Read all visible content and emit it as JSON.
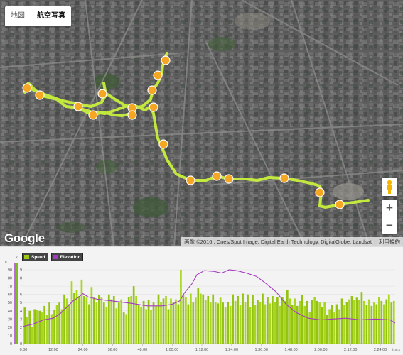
{
  "map": {
    "tabs": [
      {
        "label": "地図",
        "active": false
      },
      {
        "label": "航空写真",
        "active": true
      }
    ],
    "google_logo": "Google",
    "attribution": "画像 ©2016 , Cnes/Spot Image, Digital Earth Technology, DigitalGlobe, Landsat",
    "terms": "利用規約",
    "zoom_in": "+",
    "zoom_out": "−",
    "route_color": "#c8f03c",
    "marker_color": "#f5a623",
    "icons": [
      "pegman-icon",
      "runner-marker-icon"
    ]
  },
  "chart_data": {
    "type": "bar",
    "legend": [
      {
        "name": "Speed",
        "color": "#9cc817"
      },
      {
        "name": "Elevation",
        "color": "#a43bbf"
      }
    ],
    "unit_left": "m",
    "unit_left2": "k",
    "y_ticks_left": [
      "90",
      "80",
      "70",
      "60",
      "50",
      "40",
      "30",
      "20",
      "10",
      "0"
    ],
    "y_ticks_right": [
      "9",
      "8",
      "7",
      "6",
      "5",
      "4",
      "3",
      "2",
      "1",
      "0"
    ],
    "x_ticks": [
      "0:00",
      "12:00",
      "24:00",
      "36:00",
      "48:00",
      "1:00:00",
      "1:12:00",
      "1:24:00",
      "1:36:00",
      "1:48:00",
      "2:00:00",
      "2:12:00",
      "2:24:00"
    ],
    "x_unit": "h:m:s",
    "xlim_minutes": [
      0,
      150
    ],
    "ylim": [
      0,
      95
    ],
    "speed_values": [
      44,
      32,
      40,
      20,
      42,
      41,
      40,
      38,
      46,
      35,
      50,
      36,
      41,
      47,
      50,
      42,
      60,
      55,
      48,
      76,
      62,
      65,
      58,
      78,
      58,
      56,
      48,
      69,
      56,
      50,
      59,
      56,
      50,
      45,
      60,
      54,
      58,
      43,
      50,
      54,
      38,
      36,
      57,
      58,
      70,
      58,
      47,
      45,
      52,
      42,
      53,
      41,
      50,
      46,
      60,
      51,
      55,
      58,
      42,
      55,
      50,
      54,
      48,
      90,
      59,
      57,
      48,
      61,
      50,
      56,
      68,
      61,
      60,
      53,
      58,
      50,
      60,
      51,
      49,
      56,
      50,
      45,
      51,
      46,
      60,
      52,
      58,
      47,
      61,
      51,
      60,
      45,
      59,
      47,
      53,
      51,
      61,
      48,
      57,
      49,
      58,
      51,
      57,
      46,
      57,
      52,
      65,
      55,
      47,
      55,
      46,
      52,
      59,
      46,
      52,
      39,
      53,
      57,
      52,
      50,
      45,
      51,
      35,
      42,
      47,
      38,
      48,
      42,
      55,
      47,
      51,
      54,
      58,
      53,
      56,
      53,
      63,
      52,
      47,
      54,
      46,
      50,
      48,
      57,
      52,
      48,
      54,
      60,
      50,
      52
    ],
    "elevation_points": [
      [
        0,
        21
      ],
      [
        4,
        24
      ],
      [
        8,
        29
      ],
      [
        12,
        31
      ],
      [
        15,
        37
      ],
      [
        18,
        46
      ],
      [
        20,
        52
      ],
      [
        22,
        56
      ],
      [
        24,
        61
      ],
      [
        26,
        57
      ],
      [
        30,
        54
      ],
      [
        36,
        52
      ],
      [
        44,
        49
      ],
      [
        50,
        46
      ],
      [
        56,
        46
      ],
      [
        60,
        48
      ],
      [
        63,
        52
      ],
      [
        65,
        62
      ],
      [
        68,
        73
      ],
      [
        70,
        84
      ],
      [
        73,
        89
      ],
      [
        77,
        88
      ],
      [
        80,
        86
      ],
      [
        83,
        90
      ],
      [
        86,
        89
      ],
      [
        90,
        86
      ],
      [
        94,
        82
      ],
      [
        98,
        73
      ],
      [
        102,
        63
      ],
      [
        106,
        48
      ],
      [
        110,
        38
      ],
      [
        115,
        31
      ],
      [
        120,
        29
      ],
      [
        125,
        30
      ],
      [
        130,
        31
      ],
      [
        136,
        29
      ],
      [
        142,
        30
      ],
      [
        148,
        29
      ],
      [
        150,
        25
      ]
    ]
  }
}
